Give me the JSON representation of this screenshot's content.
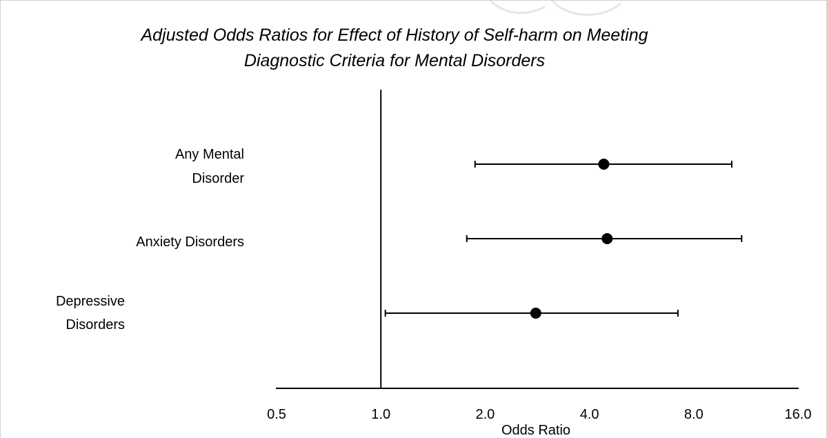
{
  "chart_data": {
    "type": "scatter",
    "subtype": "forest-plot",
    "title_lines": [
      "Adjusted Odds Ratios for Effect of History of Self-harm on Meeting",
      "Diagnostic Criteria for Mental Disorders"
    ],
    "xlabel": "Odds Ratio",
    "x_scale": "log2",
    "xlim": [
      0.5,
      16.0
    ],
    "xticks": [
      "0.5",
      "1.0",
      "2.0",
      "4.0",
      "8.0",
      "16.0"
    ],
    "reference_line_x": 1.0,
    "grid": false,
    "legend": "none",
    "marker_color": "#000000",
    "rows": [
      {
        "label_lines": [
          "Any Mental",
          "Disorder"
        ],
        "or": 4.4,
        "ci_low": 1.87,
        "ci_high": 10.3
      },
      {
        "label_lines": [
          "Anxiety Disorders"
        ],
        "or": 4.5,
        "ci_low": 1.77,
        "ci_high": 11.0
      },
      {
        "label_lines": [
          "Depressive",
          "Disorders"
        ],
        "or": 2.8,
        "ci_low": 1.03,
        "ci_high": 7.2
      }
    ]
  }
}
